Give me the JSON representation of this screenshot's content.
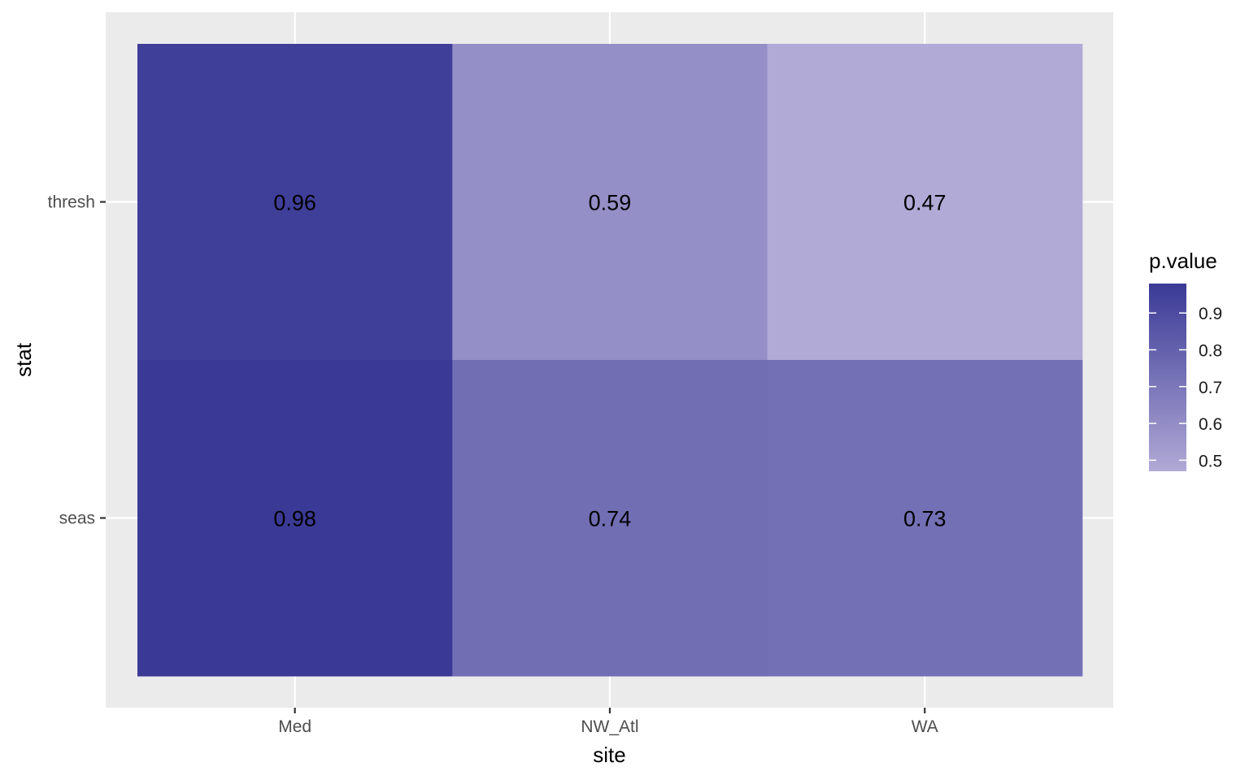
{
  "chart_data": {
    "type": "heatmap",
    "title": "",
    "xlabel": "site",
    "ylabel": "stat",
    "x_categories": [
      "Med",
      "NW_Atl",
      "WA"
    ],
    "y_categories": [
      "seas",
      "thresh"
    ],
    "cells": [
      {
        "x": "Med",
        "y": "thresh",
        "value": 0.96,
        "label": "0.96"
      },
      {
        "x": "NW_Atl",
        "y": "thresh",
        "value": 0.59,
        "label": "0.59"
      },
      {
        "x": "WA",
        "y": "thresh",
        "value": 0.47,
        "label": "0.47"
      },
      {
        "x": "Med",
        "y": "seas",
        "value": 0.98,
        "label": "0.98"
      },
      {
        "x": "NW_Atl",
        "y": "seas",
        "value": 0.74,
        "label": "0.74"
      },
      {
        "x": "WA",
        "y": "seas",
        "value": 0.73,
        "label": "0.73"
      }
    ],
    "legend": {
      "title": "p.value",
      "position": "right",
      "ticks": [
        "0.9",
        "0.8",
        "0.7",
        "0.6",
        "0.5"
      ],
      "tick_values": [
        0.9,
        0.8,
        0.7,
        0.6,
        0.5
      ],
      "range": [
        0.47,
        0.98
      ],
      "low_color": "#b1a9d6",
      "high_color": "#3a3a96"
    },
    "grid": true,
    "panel_background": "#ebebeb",
    "gridline_color": "#ffffff"
  }
}
